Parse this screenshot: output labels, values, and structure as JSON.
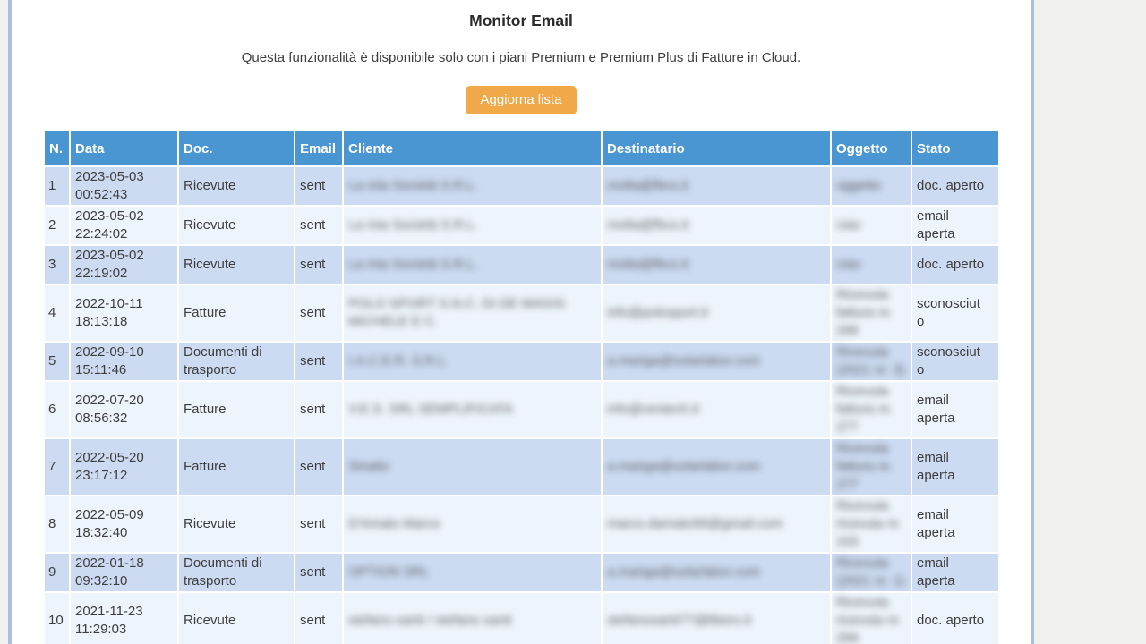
{
  "page": {
    "title": "Monitor Email",
    "subtitle": "Questa funzionalità è disponibile solo con i piani Premium e Premium Plus di Fatture in Cloud.",
    "refresh_button_label": "Aggiorna lista"
  },
  "colors": {
    "header_blue": "#4a96d3",
    "row_odd": "#ccdaf2",
    "row_even": "#eef4fc",
    "button_orange": "#f0a848",
    "panel_border_blue": "#a9c0e2",
    "page_background": "#f1f1f0"
  },
  "table": {
    "columns": [
      {
        "key": "n",
        "label": "N."
      },
      {
        "key": "data",
        "label": "Data"
      },
      {
        "key": "doc",
        "label": "Doc."
      },
      {
        "key": "email",
        "label": "Email"
      },
      {
        "key": "cliente",
        "label": "Cliente"
      },
      {
        "key": "destinatario",
        "label": "Destinatario"
      },
      {
        "key": "oggetto",
        "label": "Oggetto"
      },
      {
        "key": "stato",
        "label": "Stato"
      }
    ],
    "redacted_columns": [
      "cliente",
      "destinatario",
      "oggetto"
    ],
    "rows": [
      {
        "n": "1",
        "data": "2023-05-03 00:52:43",
        "doc": "Ricevute",
        "email": "sent",
        "cliente": "La mia Società S.R.L.",
        "destinatario": "molta@fbcs.it",
        "oggetto": "oggetto",
        "stato": "doc. aperto"
      },
      {
        "n": "2",
        "data": "2023-05-02 22:24:02",
        "doc": "Ricevute",
        "email": "sent",
        "cliente": "La mia Società S.R.L.",
        "destinatario": "molta@fbcs.it",
        "oggetto": "ciao",
        "stato": "email aperta"
      },
      {
        "n": "3",
        "data": "2023-05-02 22:19:02",
        "doc": "Ricevute",
        "email": "sent",
        "cliente": "La mia Società S.R.L.",
        "destinatario": "molta@fbcs.it",
        "oggetto": "ciao",
        "stato": "doc. aperto"
      },
      {
        "n": "4",
        "data": "2022-10-11 18:13:18",
        "doc": "Fatture",
        "email": "sent",
        "cliente": "POLO SPORT S.N.C. DI DE MAGIS MICHELE E C.",
        "destinatario": "info@polosport.it",
        "oggetto": "Ricevuta fattura nr. 299",
        "stato": "sconosciuto"
      },
      {
        "n": "5",
        "data": "2022-09-10 15:11:46",
        "doc": "Documenti di trasporto",
        "email": "sent",
        "cliente": "I.A.C.E.R. S.R.L.",
        "destinatario": "a.mariga@solarlabor.com",
        "oggetto": "Ricevuta (2021 nr. 3)",
        "stato": "sconosciuto"
      },
      {
        "n": "6",
        "data": "2022-07-20 08:56:32",
        "doc": "Fatture",
        "email": "sent",
        "cliente": "V.E.S. SRL SEMPLIFICATA",
        "destinatario": "info@vestech.it",
        "oggetto": "Ricevuta fattura nr. 277",
        "stato": "email aperta"
      },
      {
        "n": "7",
        "data": "2022-05-20 23:17:12",
        "doc": "Fatture",
        "email": "sent",
        "cliente": "Sinatio",
        "destinatario": "a.mariga@solarlabor.com",
        "oggetto": "Ricevuta fattura nr. 277",
        "stato": "email aperta"
      },
      {
        "n": "8",
        "data": "2022-05-09 18:32:40",
        "doc": "Ricevute",
        "email": "sent",
        "cliente": "D'Amato Marco",
        "destinatario": "marco.damato99@gmail.com",
        "oggetto": "Ricevuta ricevuta nr. 103",
        "stato": "email aperta"
      },
      {
        "n": "9",
        "data": "2022-01-18 09:32:10",
        "doc": "Documenti di trasporto",
        "email": "sent",
        "cliente": "OPTION SRL",
        "destinatario": "a.mariga@solarlabor.com",
        "oggetto": "Ricevuta (2021 nr. 1)",
        "stato": "email aperta"
      },
      {
        "n": "10",
        "data": "2021-11-23 11:29:03",
        "doc": "Ricevute",
        "email": "sent",
        "cliente": "stefano santi / stefano santi",
        "destinatario": "stefanosanti77@libero.it",
        "oggetto": "Ricevuta ricevuta nr. 299",
        "stato": "doc. aperto"
      }
    ]
  }
}
